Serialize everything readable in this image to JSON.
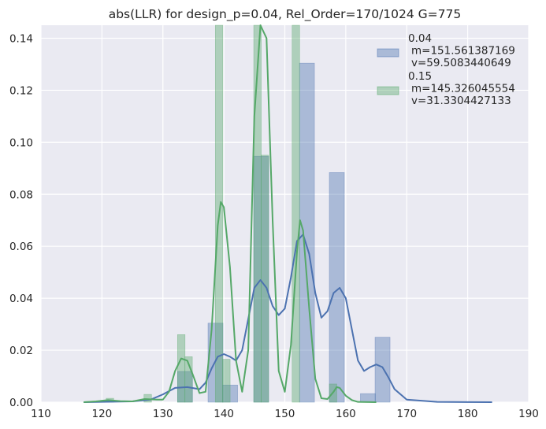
{
  "chart_data": {
    "type": "bar",
    "title": "abs(LLR) for design_p=0.04, Rel_Order=170/1024 G=775",
    "xlabel": "",
    "ylabel": "",
    "xlim": [
      110,
      190
    ],
    "ylim": [
      0,
      0.145
    ],
    "grid": true,
    "legend_position": "top-right",
    "xticks": [
      "110",
      "120",
      "130",
      "140",
      "150",
      "160",
      "170",
      "180",
      "190"
    ],
    "xtick_values": [
      110,
      120,
      130,
      140,
      150,
      160,
      170,
      180,
      190
    ],
    "yticks": [
      "0.00",
      "0.02",
      "0.04",
      "0.06",
      "0.08",
      "0.10",
      "0.12",
      "0.14"
    ],
    "ytick_values": [
      0,
      0.02,
      0.04,
      0.06,
      0.08,
      0.1,
      0.12,
      0.14
    ],
    "series": [
      {
        "name": "0.04\n m=151.561387169\n v=59.5083440649",
        "legend_lines": [
          "0.04",
          "m=151.561387169",
          "v=59.5083440649"
        ],
        "color": "#4c72b0",
        "bin_width": 2.46,
        "bins": [
          {
            "x0": 132.4,
            "height": 0.0118
          },
          {
            "x0": 137.4,
            "height": 0.0304
          },
          {
            "x0": 139.8,
            "height": 0.0066
          },
          {
            "x0": 144.9,
            "height": 0.0946
          },
          {
            "x0": 152.4,
            "height": 0.1304
          },
          {
            "x0": 157.3,
            "height": 0.0884
          },
          {
            "x0": 162.4,
            "height": 0.0033
          },
          {
            "x0": 164.8,
            "height": 0.025
          }
        ],
        "kde": [
          [
            117,
            0
          ],
          [
            125,
            0.0003
          ],
          [
            128,
            0.001
          ],
          [
            130,
            0.003
          ],
          [
            132,
            0.0055
          ],
          [
            134,
            0.0058
          ],
          [
            136,
            0.005
          ],
          [
            137,
            0.0075
          ],
          [
            138,
            0.013
          ],
          [
            139,
            0.0175
          ],
          [
            140,
            0.0185
          ],
          [
            141,
            0.0175
          ],
          [
            142,
            0.016
          ],
          [
            143,
            0.02
          ],
          [
            144,
            0.032
          ],
          [
            145,
            0.044
          ],
          [
            146,
            0.047
          ],
          [
            147,
            0.044
          ],
          [
            148,
            0.037
          ],
          [
            149,
            0.0335
          ],
          [
            150,
            0.036
          ],
          [
            151,
            0.048
          ],
          [
            152,
            0.062
          ],
          [
            153,
            0.0645
          ],
          [
            154,
            0.057
          ],
          [
            155,
            0.042
          ],
          [
            156,
            0.0325
          ],
          [
            157,
            0.035
          ],
          [
            158,
            0.042
          ],
          [
            159,
            0.044
          ],
          [
            160,
            0.04
          ],
          [
            161,
            0.028
          ],
          [
            162,
            0.016
          ],
          [
            163,
            0.012
          ],
          [
            164,
            0.0135
          ],
          [
            165,
            0.0145
          ],
          [
            166,
            0.0135
          ],
          [
            167,
            0.0095
          ],
          [
            168,
            0.005
          ],
          [
            170,
            0.001
          ],
          [
            175,
            0.0001
          ],
          [
            180,
            2e-05
          ],
          [
            184,
            0
          ]
        ]
      },
      {
        "name": "0.15\n m=145.326045554\n v=31.3304427133",
        "legend_lines": [
          "0.15",
          "m=145.326045554",
          "v=31.3304427133"
        ],
        "color": "#55a868",
        "bin_width": 1.23,
        "bins": [
          {
            "x0": 120.7,
            "height": 0.0015
          },
          {
            "x0": 126.9,
            "height": 0.003
          },
          {
            "x0": 132.4,
            "height": 0.026
          },
          {
            "x0": 133.6,
            "height": 0.0175
          },
          {
            "x0": 138.6,
            "height": 0.145
          },
          {
            "x0": 139.8,
            "height": 0.0165
          },
          {
            "x0": 144.9,
            "height": 0.145
          },
          {
            "x0": 146.1,
            "height": 0.095
          },
          {
            "x0": 151.2,
            "height": 0.145
          },
          {
            "x0": 157.3,
            "height": 0.007
          }
        ],
        "kde": [
          [
            117,
            0
          ],
          [
            119,
            0.0003
          ],
          [
            121,
            0.0008
          ],
          [
            123,
            0.0004
          ],
          [
            125,
            0.0003
          ],
          [
            127,
            0.0012
          ],
          [
            129,
            0.001
          ],
          [
            130,
            0.001
          ],
          [
            131,
            0.004
          ],
          [
            132,
            0.012
          ],
          [
            133,
            0.0168
          ],
          [
            134,
            0.016
          ],
          [
            135,
            0.01
          ],
          [
            136,
            0.0035
          ],
          [
            137,
            0.004
          ],
          [
            138,
            0.028
          ],
          [
            139,
            0.068
          ],
          [
            139.5,
            0.077
          ],
          [
            140,
            0.075
          ],
          [
            141,
            0.052
          ],
          [
            142,
            0.016
          ],
          [
            143,
            0.004
          ],
          [
            144,
            0.02
          ],
          [
            145,
            0.11
          ],
          [
            146,
            0.145
          ],
          [
            147,
            0.14
          ],
          [
            148,
            0.07
          ],
          [
            149,
            0.012
          ],
          [
            150,
            0.004
          ],
          [
            151,
            0.022
          ],
          [
            152,
            0.058
          ],
          [
            152.5,
            0.07
          ],
          [
            153,
            0.066
          ],
          [
            154,
            0.036
          ],
          [
            155,
            0.009
          ],
          [
            156,
            0.0015
          ],
          [
            157,
            0.0012
          ],
          [
            158,
            0.004
          ],
          [
            158.5,
            0.0058
          ],
          [
            159,
            0.0055
          ],
          [
            160,
            0.0025
          ],
          [
            161,
            0.0008
          ],
          [
            162,
            0.0001
          ],
          [
            165,
            0
          ]
        ]
      }
    ]
  }
}
